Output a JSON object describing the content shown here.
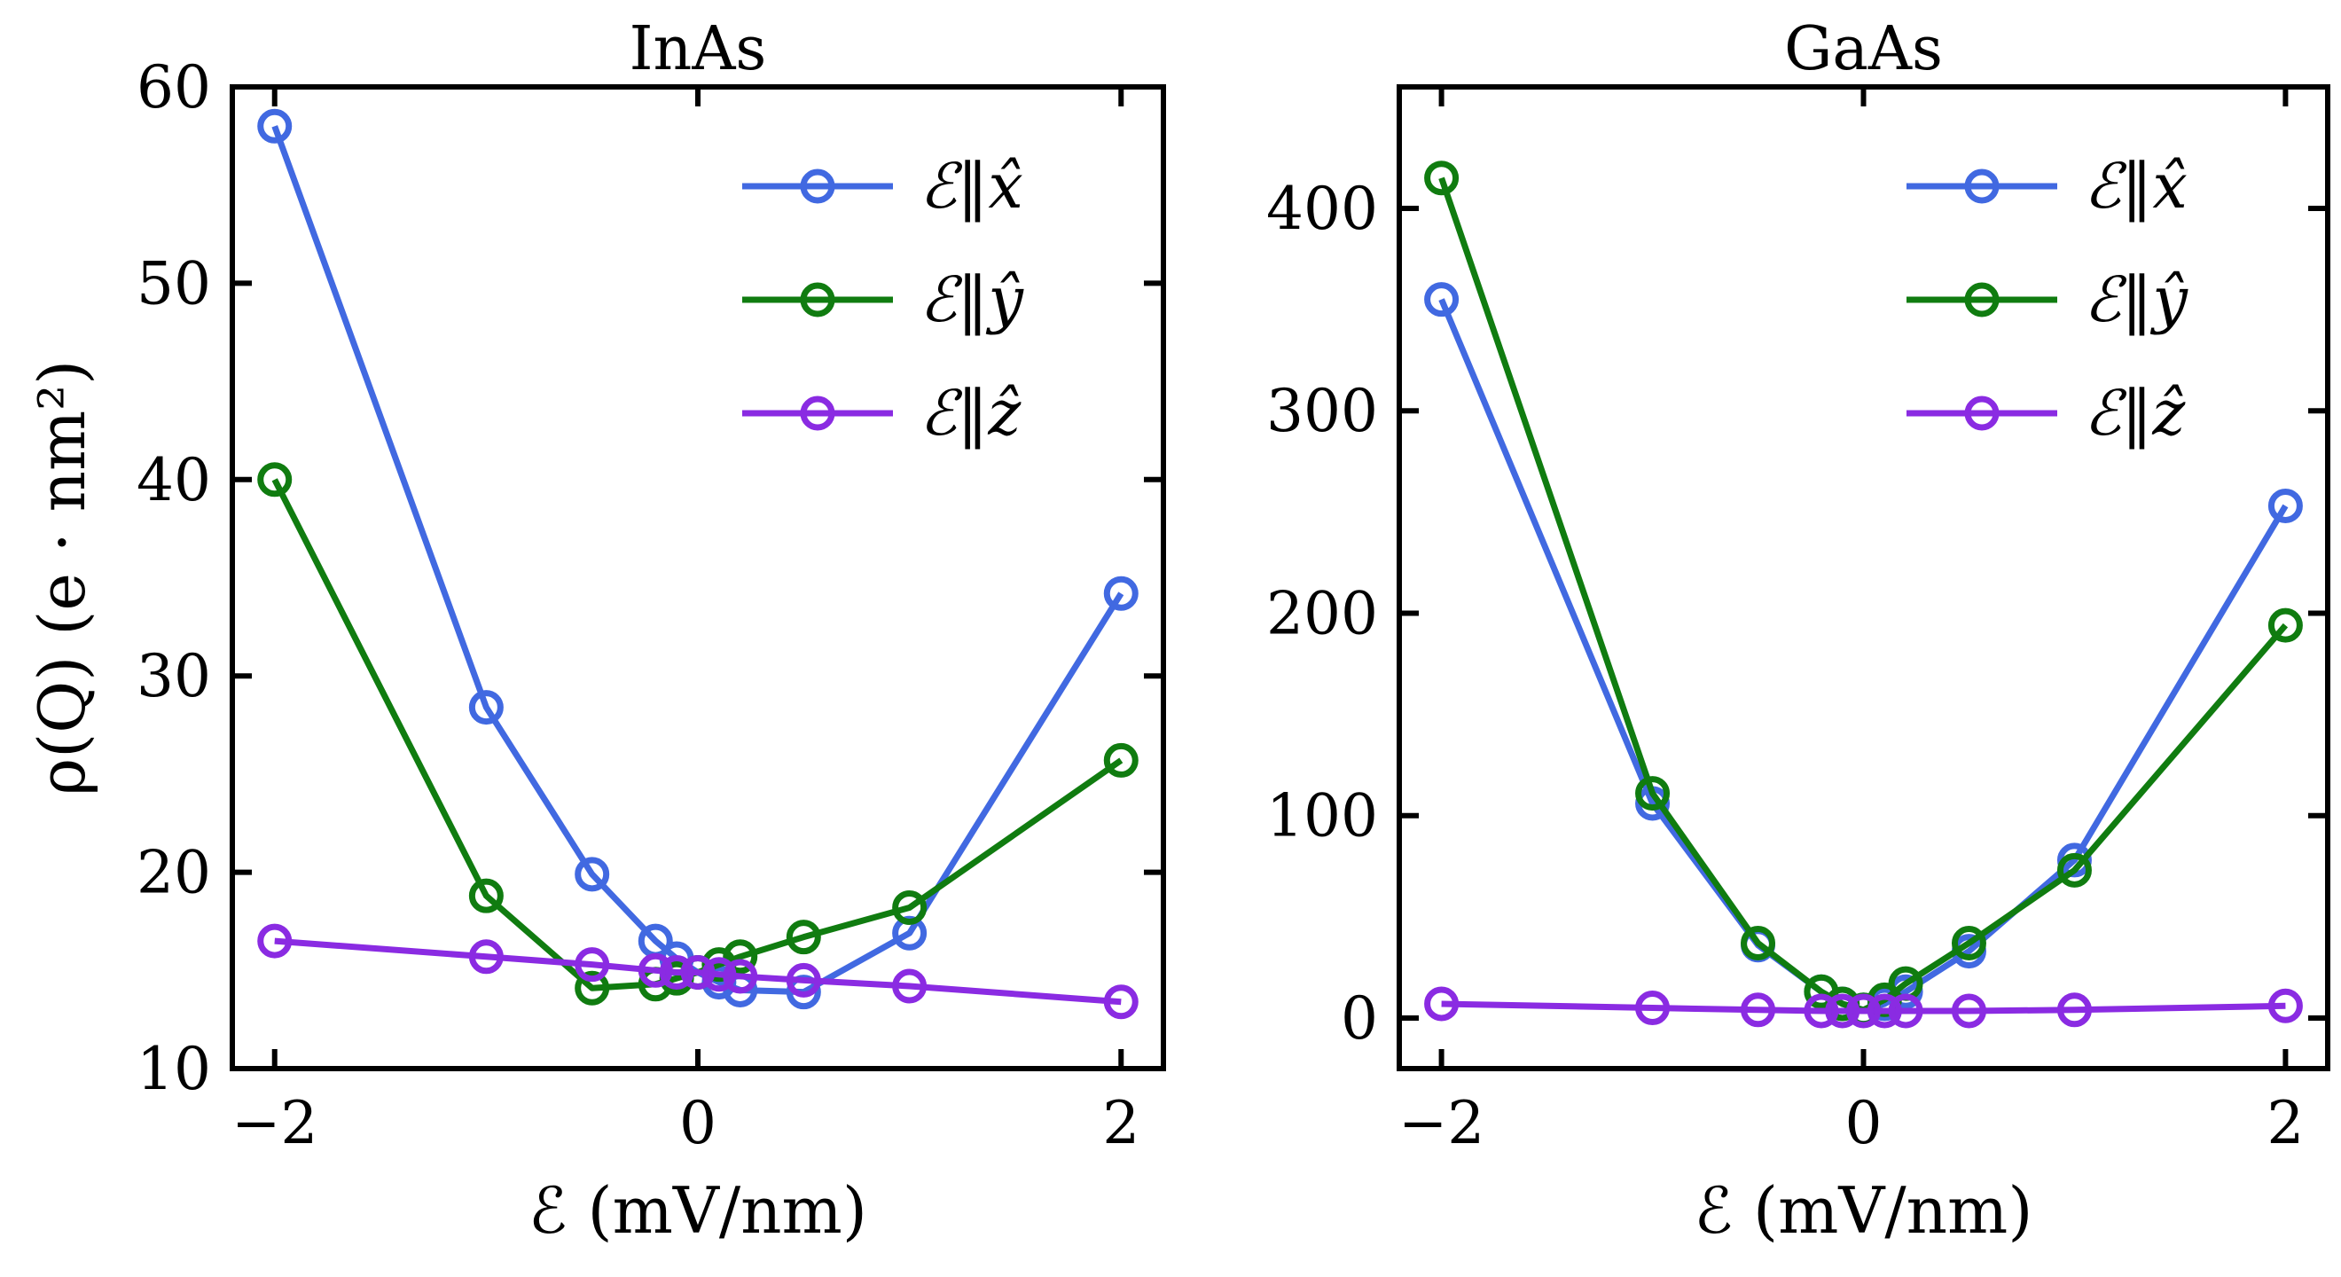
{
  "chart_data": [
    {
      "type": "line",
      "title": "InAs",
      "xlabel": "ℰ (mV/nm)",
      "ylabel": "ρ(Q) (e · nm²)",
      "xlim": [
        -2.2,
        2.2
      ],
      "ylim": [
        10,
        60
      ],
      "xticks": [
        -2,
        0,
        2
      ],
      "xtick_labels": [
        "−2",
        "0",
        "2"
      ],
      "yticks": [
        10,
        20,
        30,
        40,
        50,
        60
      ],
      "ytick_labels": [
        "10",
        "20",
        "30",
        "40",
        "50",
        "60"
      ],
      "grid": false,
      "legend_position": "top-right",
      "series": [
        {
          "name": "ℰ‖x̂",
          "color": "#4169e1",
          "x": [
            -2,
            -1,
            -0.5,
            -0.2,
            -0.1,
            0,
            0.1,
            0.2,
            0.5,
            1,
            2
          ],
          "y": [
            58.0,
            28.4,
            19.9,
            16.5,
            15.6,
            14.9,
            14.4,
            14.0,
            13.9,
            16.9,
            34.2
          ]
        },
        {
          "name": "ℰ‖ŷ",
          "color": "#107c10",
          "x": [
            -2,
            -1,
            -0.5,
            -0.2,
            -0.1,
            0,
            0.1,
            0.2,
            0.5,
            1,
            2
          ],
          "y": [
            40.0,
            18.8,
            14.1,
            14.3,
            14.6,
            14.9,
            15.3,
            15.7,
            16.7,
            18.2,
            25.7
          ]
        },
        {
          "name": "ℰ‖ẑ",
          "color": "#8a2be2",
          "x": [
            -2,
            -1,
            -0.5,
            -0.2,
            -0.1,
            0,
            0.1,
            0.2,
            0.5,
            1,
            2
          ],
          "y": [
            16.5,
            15.7,
            15.3,
            15.0,
            14.9,
            14.9,
            14.8,
            14.7,
            14.5,
            14.2,
            13.4
          ]
        }
      ]
    },
    {
      "type": "line",
      "title": "GaAs",
      "xlabel": "ℰ (mV/nm)",
      "ylabel": "",
      "xlim": [
        -2.2,
        2.2
      ],
      "ylim": [
        -25,
        460
      ],
      "xticks": [
        -2,
        0,
        2
      ],
      "xtick_labels": [
        "−2",
        "0",
        "2"
      ],
      "yticks": [
        0,
        100,
        200,
        300,
        400
      ],
      "ytick_labels": [
        "0",
        "100",
        "200",
        "300",
        "400"
      ],
      "grid": false,
      "legend_position": "top-right",
      "series": [
        {
          "name": "ℰ‖x̂",
          "color": "#4169e1",
          "x": [
            -2,
            -1,
            -0.5,
            -0.2,
            -0.1,
            0,
            0.1,
            0.2,
            0.5,
            1,
            2
          ],
          "y": [
            355,
            106,
            36,
            13,
            7,
            4,
            7,
            13,
            33,
            78,
            253
          ]
        },
        {
          "name": "ℰ‖ŷ",
          "color": "#107c10",
          "x": [
            -2,
            -1,
            -0.5,
            -0.2,
            -0.1,
            0,
            0.1,
            0.2,
            0.5,
            1,
            2
          ],
          "y": [
            415,
            111,
            37,
            13,
            7,
            4,
            9,
            17,
            37,
            73,
            194
          ]
        },
        {
          "name": "ℰ‖ẑ",
          "color": "#8a2be2",
          "x": [
            -2,
            -1,
            -0.5,
            -0.2,
            -0.1,
            0,
            0.1,
            0.2,
            0.5,
            1,
            2
          ],
          "y": [
            7,
            5,
            4,
            3.5,
            3.5,
            3.5,
            3.5,
            3.5,
            3.5,
            4,
            6
          ]
        }
      ]
    }
  ]
}
